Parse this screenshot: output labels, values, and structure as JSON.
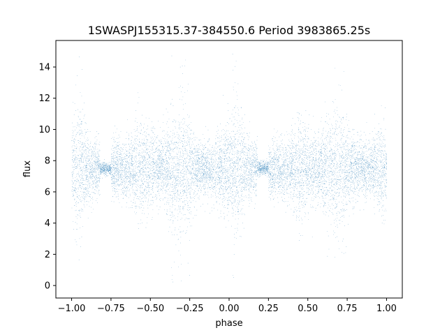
{
  "chart_data": {
    "type": "scatter",
    "title": "1SWASPJ155315.37-384550.6 Period 3983865.25s",
    "xlabel": "phase",
    "ylabel": "flux",
    "xlim": [
      -1.1,
      1.1
    ],
    "ylim": [
      -0.8,
      15.7
    ],
    "xticks": [
      -1.0,
      -0.75,
      -0.5,
      -0.25,
      0.0,
      0.25,
      0.5,
      0.75,
      1.0
    ],
    "xtick_labels": [
      "−1.00",
      "−0.75",
      "−0.50",
      "−0.25",
      "0.00",
      "0.25",
      "0.50",
      "0.75",
      "1.00"
    ],
    "yticks": [
      0,
      2,
      4,
      6,
      8,
      10,
      12,
      14
    ],
    "ytick_labels": [
      "0",
      "2",
      "4",
      "6",
      "8",
      "10",
      "12",
      "14"
    ],
    "grid": false,
    "legend": "none",
    "marker_color": "#1f77b4",
    "series": [
      {
        "name": "",
        "phase_range": [
          -1.0,
          1.0
        ],
        "typical_flux": 7.5,
        "flux_range": [
          0.0,
          15.0
        ],
        "quiet_phase_windows": [
          [
            -0.82,
            -0.75
          ],
          [
            0.18,
            0.25
          ]
        ],
        "high_scatter_phase_windows": [
          [
            -0.98,
            -0.93
          ],
          [
            -0.38,
            -0.25
          ],
          [
            0.02,
            0.07
          ],
          [
            0.62,
            0.75
          ]
        ]
      }
    ]
  }
}
